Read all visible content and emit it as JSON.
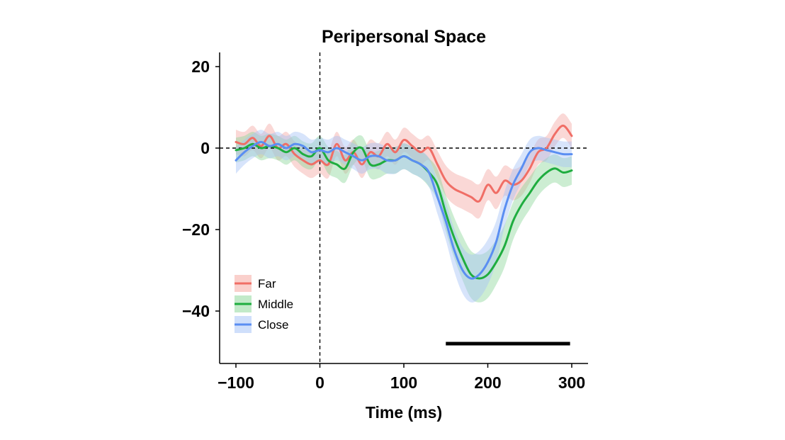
{
  "chart_data": {
    "type": "line",
    "title": "Peripersonal Space",
    "xlabel": "Time (ms)",
    "ylabel": "",
    "xlim": [
      -110,
      320
    ],
    "ylim": [
      -53,
      23
    ],
    "xticks": [
      -100,
      0,
      100,
      200,
      300
    ],
    "xtick_labels": [
      "−100",
      "0",
      "100",
      "200",
      "300"
    ],
    "yticks": [
      20,
      0,
      -20,
      -40
    ],
    "ytick_labels": [
      "20",
      "0",
      "−20",
      "−40"
    ],
    "grid": false,
    "legend_position": "bottom-left",
    "reference_lines": {
      "x": 0,
      "y": 0
    },
    "significance_bar": {
      "x_start": 150,
      "x_end": 298,
      "y": -48
    },
    "x": [
      -100,
      -90,
      -80,
      -70,
      -60,
      -50,
      -40,
      -30,
      -20,
      -10,
      0,
      10,
      20,
      30,
      40,
      50,
      60,
      70,
      80,
      90,
      100,
      110,
      120,
      130,
      140,
      150,
      160,
      170,
      180,
      190,
      200,
      210,
      220,
      230,
      240,
      250,
      260,
      270,
      280,
      290,
      300
    ],
    "series": [
      {
        "name": "Far",
        "color": "#f06e66",
        "band_color": "#f5a9a3",
        "values": [
          1.5,
          1,
          2.5,
          0.5,
          3,
          0,
          1,
          -1.5,
          -3,
          -4,
          -3,
          -4,
          1,
          -3,
          -1,
          -4,
          -1,
          -2,
          1,
          -1,
          2,
          0.5,
          -1,
          0,
          -4,
          -8,
          -10,
          -11,
          -12,
          -13,
          -9,
          -11,
          -8,
          -9,
          -8,
          -5,
          -1,
          0,
          3.5,
          5.5,
          3
        ]
      },
      {
        "name": "Middle",
        "color": "#1fad3f",
        "band_color": "#8fd89c",
        "values": [
          -0.5,
          0,
          1,
          0,
          0.5,
          0,
          -1,
          0,
          -1.5,
          -2,
          0,
          -3,
          -4,
          -5,
          -1,
          0,
          -4,
          -4,
          -3,
          -3,
          -2,
          -3,
          -4,
          -6,
          -9,
          -16,
          -22,
          -27,
          -31,
          -32,
          -31,
          -28,
          -24,
          -18,
          -14,
          -11,
          -8,
          -6,
          -5,
          -6,
          -5.5
        ]
      },
      {
        "name": "Close",
        "color": "#5a8ef2",
        "band_color": "#a7c4f7",
        "values": [
          -3,
          -1,
          0.5,
          1.5,
          0.5,
          1,
          0,
          1,
          0.5,
          -1,
          -0.5,
          -1,
          0,
          -1,
          -2,
          -3,
          -2,
          -2,
          -3,
          -3,
          -2,
          -3,
          -4,
          -6,
          -12,
          -18,
          -25,
          -30,
          -32,
          -31,
          -28,
          -23,
          -15,
          -9,
          -5,
          -1,
          0,
          -0.5,
          -1,
          -1.5,
          -1.5
        ]
      }
    ]
  }
}
